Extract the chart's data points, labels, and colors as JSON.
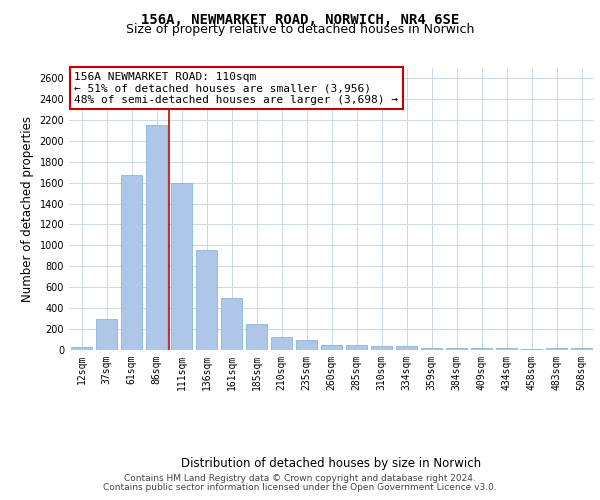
{
  "title_line1": "156A, NEWMARKET ROAD, NORWICH, NR4 6SE",
  "title_line2": "Size of property relative to detached houses in Norwich",
  "xlabel": "Distribution of detached houses by size in Norwich",
  "ylabel": "Number of detached properties",
  "categories": [
    "12sqm",
    "37sqm",
    "61sqm",
    "86sqm",
    "111sqm",
    "136sqm",
    "161sqm",
    "185sqm",
    "210sqm",
    "235sqm",
    "260sqm",
    "285sqm",
    "310sqm",
    "334sqm",
    "359sqm",
    "384sqm",
    "409sqm",
    "434sqm",
    "458sqm",
    "483sqm",
    "508sqm"
  ],
  "values": [
    25,
    300,
    1670,
    2150,
    1595,
    960,
    500,
    250,
    120,
    100,
    50,
    50,
    35,
    35,
    20,
    20,
    20,
    20,
    5,
    20,
    20
  ],
  "bar_color": "#aec6e8",
  "bar_edge_color": "#7aafd4",
  "vline_x_index": 4,
  "vline_color": "#cc0000",
  "annotation_text": "156A NEWMARKET ROAD: 110sqm\n← 51% of detached houses are smaller (3,956)\n48% of semi-detached houses are larger (3,698) →",
  "annotation_box_color": "#ffffff",
  "annotation_box_edge_color": "#cc0000",
  "ylim": [
    0,
    2700
  ],
  "yticks": [
    0,
    200,
    400,
    600,
    800,
    1000,
    1200,
    1400,
    1600,
    1800,
    2000,
    2200,
    2400,
    2600
  ],
  "background_color": "#ffffff",
  "grid_color": "#c8d8e8",
  "footer_line1": "Contains HM Land Registry data © Crown copyright and database right 2024.",
  "footer_line2": "Contains public sector information licensed under the Open Government Licence v3.0.",
  "title_fontsize": 10,
  "subtitle_fontsize": 9,
  "axis_label_fontsize": 8.5,
  "tick_fontsize": 7,
  "annotation_fontsize": 8,
  "footer_fontsize": 6.5
}
